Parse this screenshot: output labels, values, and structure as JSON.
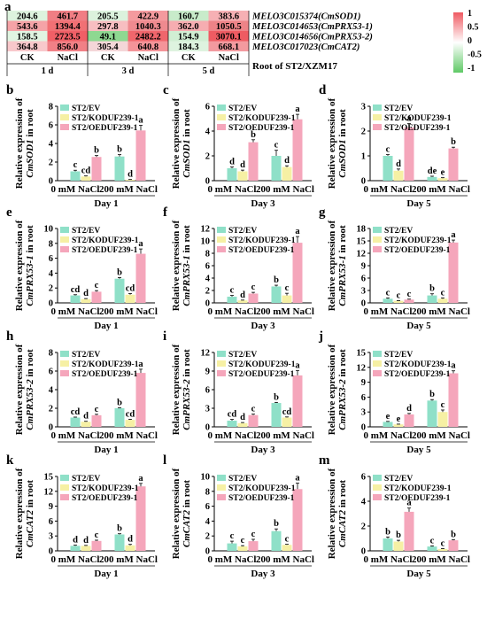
{
  "heatmap": {
    "panel_label": "a",
    "gene_labels": [
      "MELO3C015374(CmSOD1)",
      "MELO3C014653(CmPRX53-1)",
      "MELO3C014656(CmPRX53-2)",
      "MELO3C017023(CmCAT2)"
    ],
    "treatments": [
      "CK",
      "NaCl",
      "CK",
      "NaCl",
      "CK",
      "NaCl"
    ],
    "days": [
      "1 d",
      "3 d",
      "5 d"
    ],
    "values": [
      [
        "204.6",
        "461.7",
        "205.5",
        "422.9",
        "160.7",
        "383.6"
      ],
      [
        "543.6",
        "1394.4",
        "297.8",
        "1040.3",
        "362.0",
        "1050.5"
      ],
      [
        "158.5",
        "2723.5",
        "49.1",
        "2482.2",
        "154.9",
        "3070.1"
      ],
      [
        "364.8",
        "856.0",
        "305.4",
        "640.8",
        "184.3",
        "668.1"
      ]
    ],
    "colors": [
      [
        "#ddf3de",
        "#f07e84",
        "#dcf2dd",
        "#f49a9e",
        "#c8ebca",
        "#f6b0b4"
      ],
      [
        "#f5a3a7",
        "#f17074",
        "#f7bec1",
        "#ef8a8f",
        "#f6adb1",
        "#ee8387"
      ],
      [
        "#e1f5e2",
        "#f05f66",
        "#8ed891",
        "#f0666c",
        "#d1eed3",
        "#ee5b62"
      ],
      [
        "#f8c8cb",
        "#f18086",
        "#f4d6d8",
        "#f49499",
        "#def3df",
        "#f39a9f"
      ]
    ],
    "caption": "Root of ST2/XZM17",
    "scale": {
      "ticks": [
        "1",
        "0.5",
        "0",
        "-0.5",
        "-1"
      ],
      "max_color": "#ef5a62",
      "min_color": "#5fc966"
    }
  },
  "legend_labels": [
    "ST2/EV",
    "ST2/KODUF239-1",
    "ST2/OEDUF239-1"
  ],
  "series_colors": [
    "#8fe0c8",
    "#f6f0a4",
    "#f5a6bb"
  ],
  "x_group_labels": [
    "0 mM NaCl",
    "200 mM NaCl"
  ],
  "chart_data": [
    {
      "panel": "b",
      "type": "bar",
      "ylabel": "Relative expression of CmSOD1 in root",
      "xlabel": "Day 1",
      "ylim": [
        0,
        8
      ],
      "yticks": [
        0,
        2,
        4,
        6,
        8
      ],
      "values": [
        [
          1.0,
          0.45,
          2.55
        ],
        [
          2.6,
          0.1,
          5.4
        ]
      ],
      "errors": [
        [
          0.12,
          0.06,
          0.15
        ],
        [
          0.2,
          0.03,
          0.55
        ]
      ],
      "letters": [
        [
          "c",
          "cd",
          "b"
        ],
        [
          "b",
          "d",
          "a"
        ]
      ]
    },
    {
      "panel": "c",
      "type": "bar",
      "ylabel": "Relative expression of CmSOD1 in root",
      "xlabel": "Day 3",
      "ylim": [
        0,
        6
      ],
      "yticks": [
        0,
        2,
        4,
        6
      ],
      "values": [
        [
          1.0,
          0.75,
          3.1
        ],
        [
          2.0,
          1.1,
          4.95
        ]
      ],
      "errors": [
        [
          0.1,
          0.1,
          0.2
        ],
        [
          0.45,
          0.1,
          0.4
        ]
      ],
      "letters": [
        [
          "d",
          "d",
          "b"
        ],
        [
          "c",
          "d",
          "a"
        ]
      ]
    },
    {
      "panel": "d",
      "type": "bar",
      "ylabel": "Relative expression of CmSOD1 in root",
      "xlabel": "Day 5",
      "ylim": [
        0,
        3
      ],
      "yticks": [
        0,
        1,
        2,
        3
      ],
      "values": [
        [
          1.0,
          0.4,
          2.15
        ],
        [
          0.15,
          0.1,
          1.3
        ]
      ],
      "errors": [
        [
          0.05,
          0.07,
          0.15
        ],
        [
          0.03,
          0.02,
          0.05
        ]
      ],
      "letters": [
        [
          "c",
          "d",
          "a"
        ],
        [
          "de",
          "e",
          "b"
        ]
      ]
    },
    {
      "panel": "e",
      "type": "bar",
      "ylabel": "Relative expression of CmPRX53-1 in root",
      "xlabel": "Day 1",
      "ylim": [
        0,
        10
      ],
      "yticks": [
        0,
        2,
        4,
        6,
        8,
        10
      ],
      "values": [
        [
          1.0,
          0.5,
          1.5
        ],
        [
          3.25,
          1.1,
          6.6
        ]
      ],
      "errors": [
        [
          0.1,
          0.08,
          0.15
        ],
        [
          0.15,
          0.15,
          0.65
        ]
      ],
      "letters": [
        [
          "cd",
          "d",
          "c"
        ],
        [
          "b",
          "cd",
          "a"
        ]
      ]
    },
    {
      "panel": "f",
      "type": "bar",
      "ylabel": "Relative expression of CmPRX53-1 in root",
      "xlabel": "Day 3",
      "ylim": [
        0,
        12
      ],
      "yticks": [
        0,
        2,
        4,
        6,
        8,
        10,
        12
      ],
      "values": [
        [
          1.0,
          0.4,
          1.5
        ],
        [
          2.65,
          1.2,
          9.7
        ]
      ],
      "errors": [
        [
          0.2,
          0.05,
          0.2
        ],
        [
          0.2,
          0.35,
          1.0
        ]
      ],
      "letters": [
        [
          "c",
          "d",
          "c"
        ],
        [
          "b",
          "c",
          "a"
        ]
      ]
    },
    {
      "panel": "g",
      "type": "bar",
      "ylabel": "Relative expression of CmPRX53-1 in root",
      "xlabel": "Day 5",
      "ylim": [
        0,
        18
      ],
      "yticks": [
        0,
        3,
        6,
        9,
        12,
        15,
        18
      ],
      "values": [
        [
          1.0,
          0.5,
          0.8
        ],
        [
          1.8,
          1.0,
          14.6
        ]
      ],
      "errors": [
        [
          0.2,
          0.05,
          0.1
        ],
        [
          0.4,
          0.2,
          0.6
        ]
      ],
      "letters": [
        [
          "c",
          "c",
          "c"
        ],
        [
          "b",
          "c",
          "a"
        ]
      ]
    },
    {
      "panel": "h",
      "type": "bar",
      "ylabel": "Relative expression of CmPRX53-2 in root",
      "xlabel": "Day 1",
      "ylim": [
        0,
        8
      ],
      "yticks": [
        0,
        2,
        4,
        6,
        8
      ],
      "values": [
        [
          1.0,
          0.55,
          1.25
        ],
        [
          2.0,
          0.75,
          5.8
        ]
      ],
      "errors": [
        [
          0.05,
          0.05,
          0.1
        ],
        [
          0.05,
          0.07,
          0.4
        ]
      ],
      "letters": [
        [
          "cd",
          "d",
          "c"
        ],
        [
          "b",
          "cd",
          "a"
        ]
      ]
    },
    {
      "panel": "i",
      "type": "bar",
      "ylabel": "Relative expression of CmPRX53-2 in root",
      "xlabel": "Day 3",
      "ylim": [
        0,
        12
      ],
      "yticks": [
        0,
        3,
        6,
        9,
        12
      ],
      "values": [
        [
          1.0,
          0.6,
          1.9
        ],
        [
          3.85,
          1.5,
          8.3
        ]
      ],
      "errors": [
        [
          0.2,
          0.1,
          0.15
        ],
        [
          0.1,
          0.1,
          0.8
        ]
      ],
      "letters": [
        [
          "cd",
          "d",
          "c"
        ],
        [
          "b",
          "cd",
          "a"
        ]
      ]
    },
    {
      "panel": "j",
      "type": "bar",
      "ylabel": "Relative expression of CmPRX53-2 in root",
      "xlabel": "Day 5",
      "ylim": [
        0,
        15
      ],
      "yticks": [
        0,
        3,
        6,
        9,
        12,
        15
      ],
      "values": [
        [
          1.0,
          0.5,
          2.5
        ],
        [
          5.3,
          3.0,
          10.8
        ]
      ],
      "errors": [
        [
          0.1,
          0.05,
          0.2
        ],
        [
          0.2,
          0.4,
          0.5
        ]
      ],
      "letters": [
        [
          "e",
          "e",
          "d"
        ],
        [
          "b",
          "c",
          "a"
        ]
      ]
    },
    {
      "panel": "k",
      "type": "bar",
      "ylabel": "Relative expression of CmCAT2 in root",
      "xlabel": "Day 1",
      "ylim": [
        0,
        15
      ],
      "yticks": [
        0,
        3,
        6,
        9,
        12,
        15
      ],
      "values": [
        [
          1.0,
          1.0,
          2.0
        ],
        [
          3.3,
          1.1,
          13.0
        ]
      ],
      "errors": [
        [
          0.15,
          0.1,
          0.15
        ],
        [
          0.15,
          0.2,
          0.6
        ]
      ],
      "letters": [
        [
          "d",
          "d",
          "c"
        ],
        [
          "b",
          "d",
          "a"
        ]
      ]
    },
    {
      "panel": "l",
      "type": "bar",
      "ylabel": "Relative expression of CmCAT2 in root",
      "xlabel": "Day 3",
      "ylim": [
        0,
        10
      ],
      "yticks": [
        0,
        2,
        4,
        6,
        8,
        10
      ],
      "values": [
        [
          1.0,
          0.6,
          1.3
        ],
        [
          2.65,
          0.8,
          8.3
        ]
      ],
      "errors": [
        [
          0.3,
          0.1,
          0.25
        ],
        [
          0.3,
          0.08,
          0.8
        ]
      ],
      "letters": [
        [
          "c",
          "c",
          "c"
        ],
        [
          "b",
          "c",
          "a"
        ]
      ]
    },
    {
      "panel": "m",
      "type": "bar",
      "ylabel": "Relative expression of CmCAT2 in root",
      "xlabel": "Day 5",
      "ylim": [
        0,
        6
      ],
      "yticks": [
        0,
        2,
        4,
        6
      ],
      "values": [
        [
          1.0,
          0.75,
          3.15
        ],
        [
          0.35,
          0.15,
          0.85
        ]
      ],
      "errors": [
        [
          0.12,
          0.1,
          0.3
        ],
        [
          0.05,
          0.03,
          0.06
        ]
      ],
      "letters": [
        [
          "b",
          "b",
          "a"
        ],
        [
          "c",
          "c",
          "b"
        ]
      ]
    }
  ]
}
